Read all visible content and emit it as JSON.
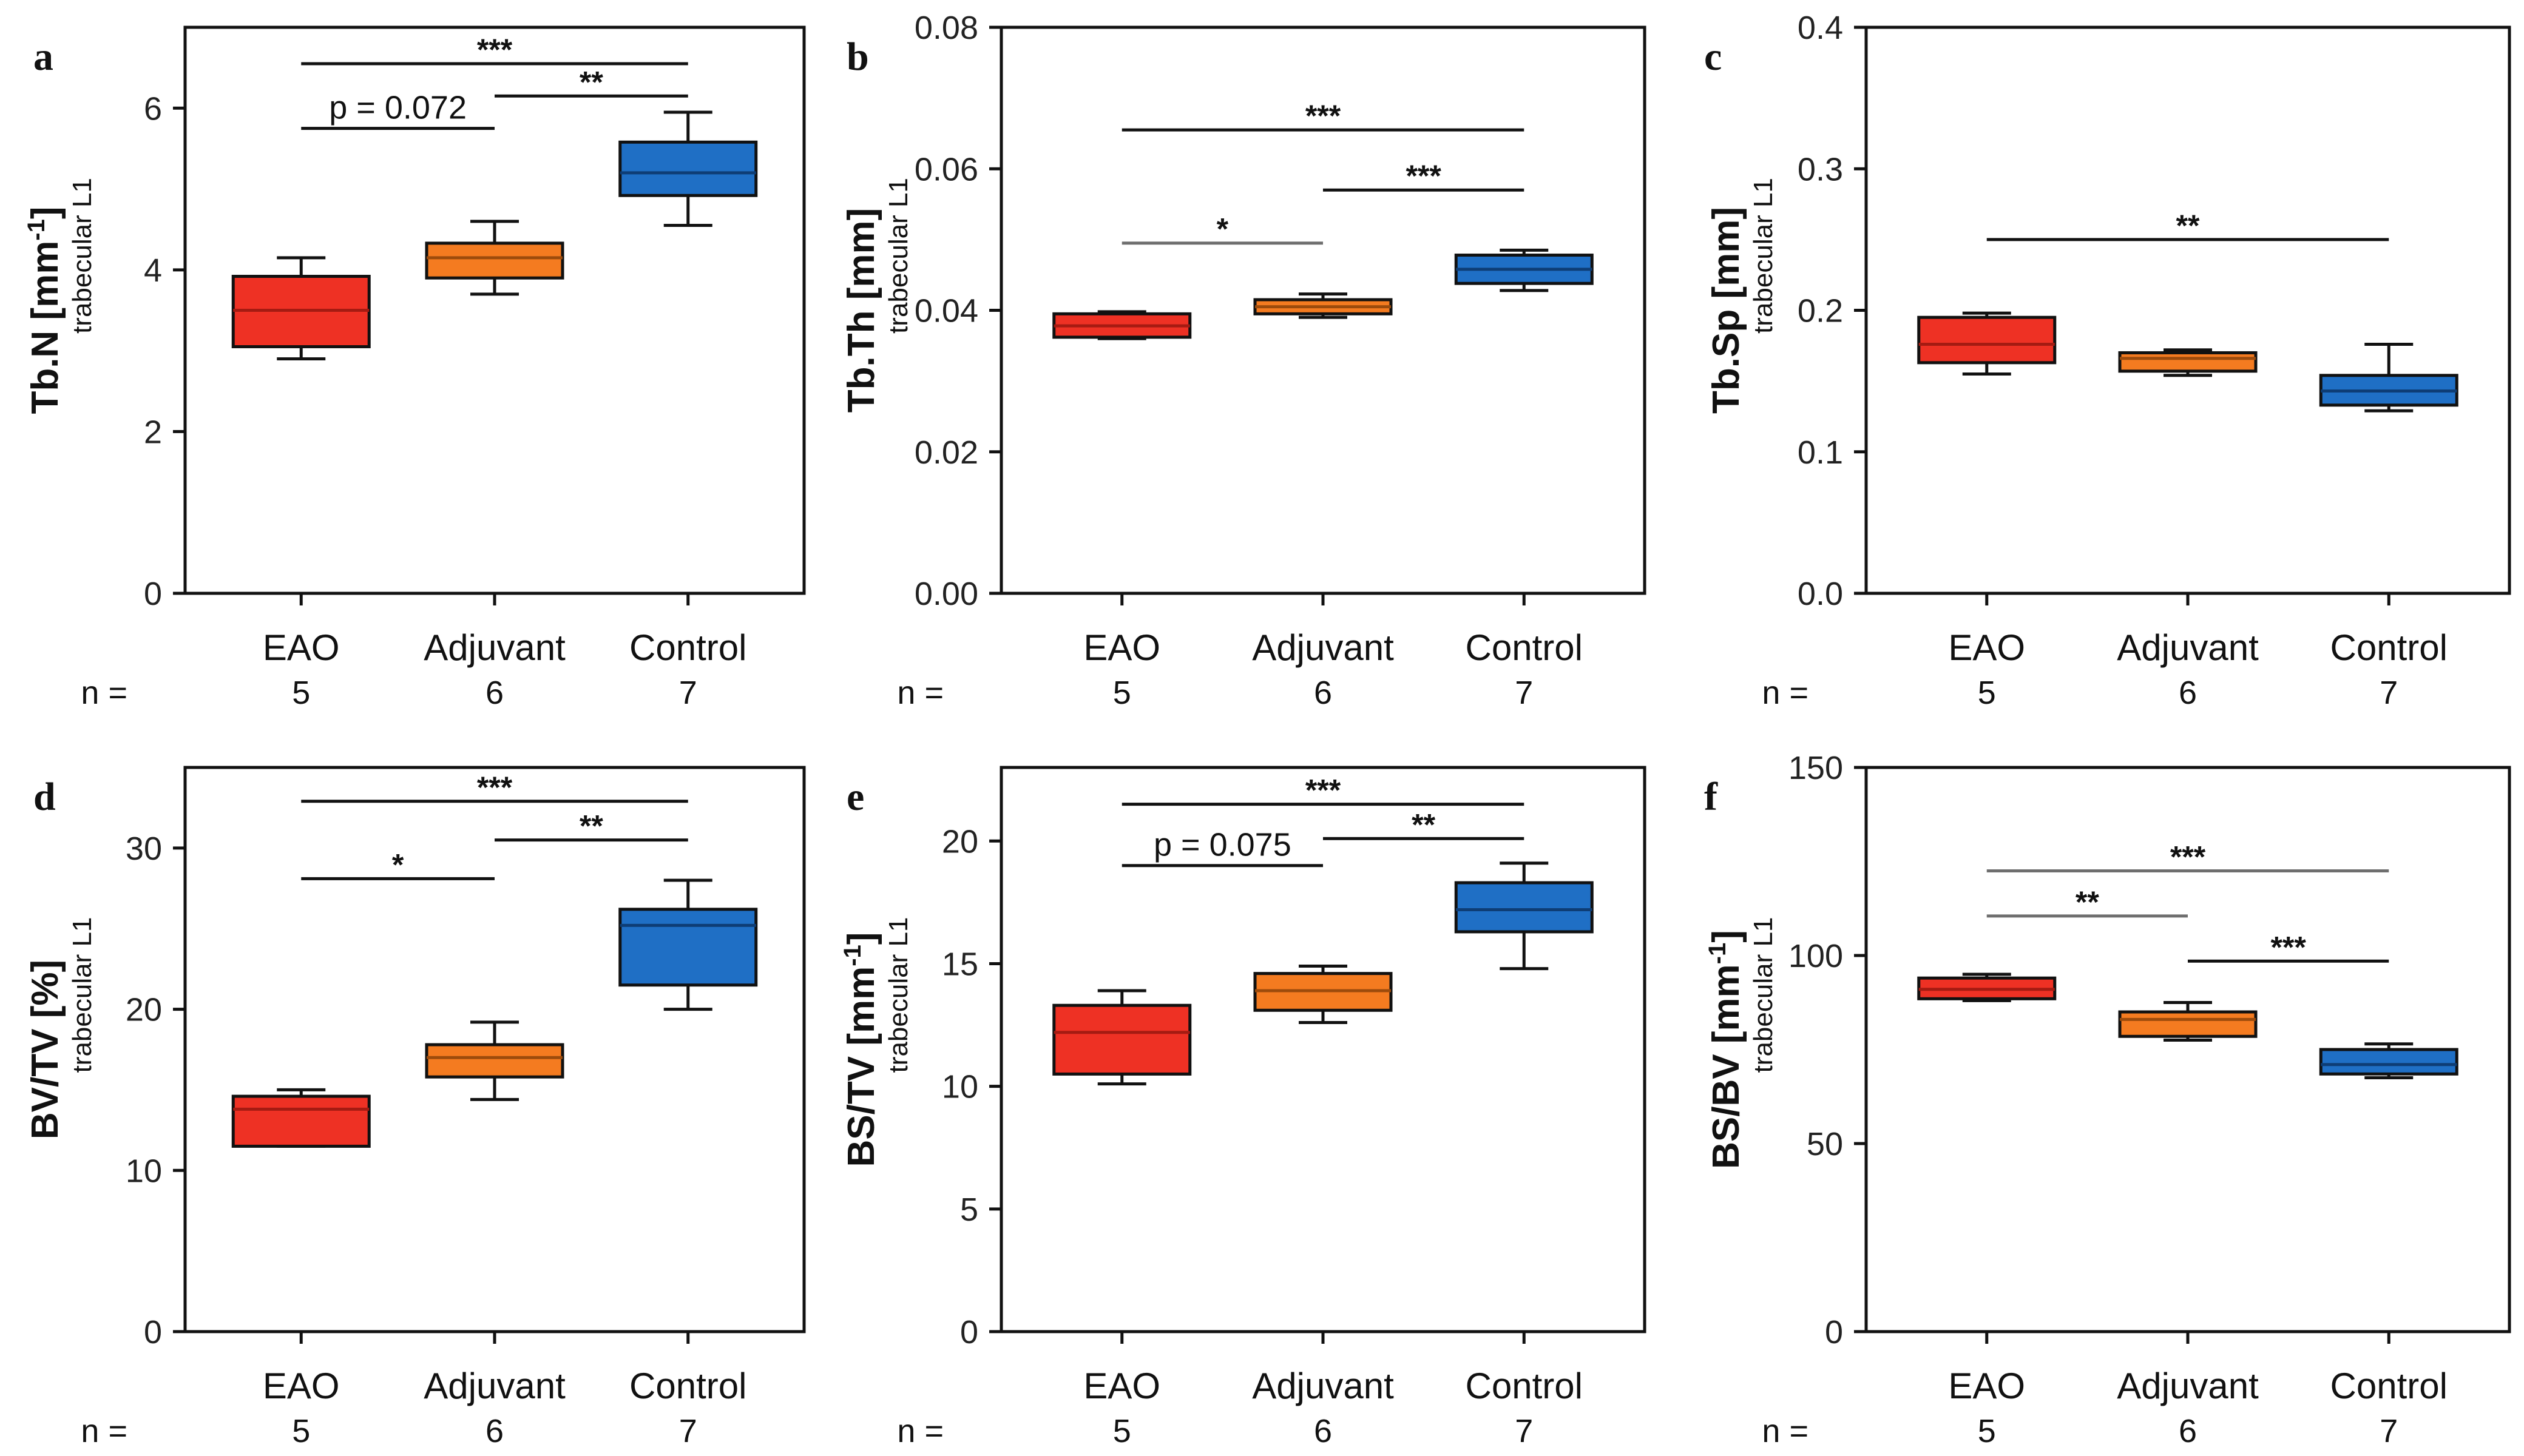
{
  "figure": {
    "n_prefix": "n =",
    "y_sublabel": "trabecular L1",
    "group_colors": [
      "#ee3124",
      "#f47b20",
      "#1f6fc5"
    ],
    "group_colors_dark": [
      "#a51b12",
      "#9c4b0c",
      "#0e3d75"
    ]
  },
  "chart_data": [
    {
      "panel": "a",
      "type": "box",
      "ylabel": "Tb.N [mm",
      "ylabel_sup": "-1",
      "ylabel_tail": "]",
      "categories": [
        "EAO",
        "Adjuvant",
        "Control"
      ],
      "n": [
        "5",
        "6",
        "7"
      ],
      "ylim": [
        0,
        7
      ],
      "ticks": [
        0,
        2,
        4,
        6
      ],
      "tick_labels": [
        "0",
        "2",
        "4",
        "6"
      ],
      "boxes": [
        {
          "min": 2.9,
          "q1": 3.05,
          "median": 3.5,
          "q3": 3.92,
          "max": 4.15
        },
        {
          "min": 3.7,
          "q1": 3.9,
          "median": 4.15,
          "q3": 4.33,
          "max": 4.6
        },
        {
          "min": 4.55,
          "q1": 4.92,
          "median": 5.2,
          "q3": 5.58,
          "max": 5.95
        }
      ],
      "comparisons": [
        {
          "from": 0,
          "to": 2,
          "y": 6.55,
          "label": "***",
          "shade": "dark"
        },
        {
          "from": 1,
          "to": 2,
          "y": 6.15,
          "label": "**",
          "shade": "dark"
        },
        {
          "from": 0,
          "to": 1,
          "y": 5.75,
          "label": "p = 0.072",
          "shade": "dark"
        }
      ]
    },
    {
      "panel": "b",
      "type": "box",
      "ylabel": "Tb.Th [mm]",
      "ylabel_sup": "",
      "ylabel_tail": "",
      "categories": [
        "EAO",
        "Adjuvant",
        "Control"
      ],
      "n": [
        "5",
        "6",
        "7"
      ],
      "ylim": [
        0,
        0.08
      ],
      "ticks": [
        0,
        0.02,
        0.04,
        0.06,
        0.08
      ],
      "tick_labels": [
        "0.00",
        "0.02",
        "0.04",
        "0.06",
        "0.08"
      ],
      "boxes": [
        {
          "min": 0.036,
          "q1": 0.0362,
          "median": 0.0378,
          "q3": 0.0395,
          "max": 0.0398
        },
        {
          "min": 0.039,
          "q1": 0.0395,
          "median": 0.0405,
          "q3": 0.0415,
          "max": 0.0423
        },
        {
          "min": 0.0428,
          "q1": 0.0438,
          "median": 0.0458,
          "q3": 0.0478,
          "max": 0.0485
        }
      ],
      "comparisons": [
        {
          "from": 0,
          "to": 2,
          "y": 0.0655,
          "label": "***",
          "shade": "dark"
        },
        {
          "from": 1,
          "to": 2,
          "y": 0.057,
          "label": "***",
          "shade": "dark"
        },
        {
          "from": 0,
          "to": 1,
          "y": 0.0495,
          "label": "*",
          "shade": "gray"
        }
      ]
    },
    {
      "panel": "c",
      "type": "box",
      "ylabel": "Tb.Sp [mm]",
      "ylabel_sup": "",
      "ylabel_tail": "",
      "categories": [
        "EAO",
        "Adjuvant",
        "Control"
      ],
      "n": [
        "5",
        "6",
        "7"
      ],
      "ylim": [
        0,
        0.4
      ],
      "ticks": [
        0,
        0.1,
        0.2,
        0.3,
        0.4
      ],
      "tick_labels": [
        "0.0",
        "0.1",
        "0.2",
        "0.3",
        "0.4"
      ],
      "boxes": [
        {
          "min": 0.155,
          "q1": 0.163,
          "median": 0.176,
          "q3": 0.195,
          "max": 0.198
        },
        {
          "min": 0.154,
          "q1": 0.157,
          "median": 0.166,
          "q3": 0.17,
          "max": 0.172
        },
        {
          "min": 0.129,
          "q1": 0.133,
          "median": 0.143,
          "q3": 0.154,
          "max": 0.176
        }
      ],
      "comparisons": [
        {
          "from": 0,
          "to": 2,
          "y": 0.25,
          "label": "**",
          "shade": "dark"
        }
      ]
    },
    {
      "panel": "d",
      "type": "box",
      "ylabel": "BV/TV [%]",
      "ylabel_sup": "",
      "ylabel_tail": "",
      "categories": [
        "EAO",
        "Adjuvant",
        "Control"
      ],
      "n": [
        "5",
        "6",
        "7"
      ],
      "ylim": [
        0,
        35
      ],
      "ticks": [
        0,
        10,
        20,
        30
      ],
      "tick_labels": [
        "0",
        "10",
        "20",
        "30"
      ],
      "boxes": [
        {
          "min": 11.5,
          "q1": 11.5,
          "median": 13.8,
          "q3": 14.6,
          "max": 15.0
        },
        {
          "min": 14.4,
          "q1": 15.8,
          "median": 17.0,
          "q3": 17.8,
          "max": 19.2
        },
        {
          "min": 20.0,
          "q1": 21.5,
          "median": 25.2,
          "q3": 26.2,
          "max": 28.0
        }
      ],
      "comparisons": [
        {
          "from": 0,
          "to": 2,
          "y": 32.9,
          "label": "***",
          "shade": "dark"
        },
        {
          "from": 1,
          "to": 2,
          "y": 30.5,
          "label": "**",
          "shade": "dark"
        },
        {
          "from": 0,
          "to": 1,
          "y": 28.1,
          "label": "*",
          "shade": "dark"
        }
      ]
    },
    {
      "panel": "e",
      "type": "box",
      "ylabel": "BS/TV [mm",
      "ylabel_sup": "-1",
      "ylabel_tail": "]",
      "categories": [
        "EAO",
        "Adjuvant",
        "Control"
      ],
      "n": [
        "5",
        "6",
        "7"
      ],
      "ylim": [
        0,
        23
      ],
      "ticks": [
        0,
        5,
        10,
        15,
        20
      ],
      "tick_labels": [
        "0",
        "5",
        "10",
        "15",
        "20"
      ],
      "boxes": [
        {
          "min": 10.1,
          "q1": 10.5,
          "median": 12.2,
          "q3": 13.3,
          "max": 13.9
        },
        {
          "min": 12.6,
          "q1": 13.1,
          "median": 13.9,
          "q3": 14.6,
          "max": 14.9
        },
        {
          "min": 14.8,
          "q1": 16.3,
          "median": 17.2,
          "q3": 18.3,
          "max": 19.1
        }
      ],
      "comparisons": [
        {
          "from": 0,
          "to": 2,
          "y": 21.5,
          "label": "***",
          "shade": "dark"
        },
        {
          "from": 1,
          "to": 2,
          "y": 20.1,
          "label": "**",
          "shade": "dark"
        },
        {
          "from": 0,
          "to": 1,
          "y": 19.0,
          "label": "p = 0.075",
          "shade": "dark"
        }
      ]
    },
    {
      "panel": "f",
      "type": "box",
      "ylabel": "BS/BV [mm",
      "ylabel_sup": "-1",
      "ylabel_tail": "]",
      "categories": [
        "EAO",
        "Adjuvant",
        "Control"
      ],
      "n": [
        "5",
        "6",
        "7"
      ],
      "ylim": [
        0,
        150
      ],
      "ticks": [
        0,
        50,
        100,
        150
      ],
      "tick_labels": [
        "0",
        "50",
        "100",
        "150"
      ],
      "boxes": [
        {
          "min": 88.0,
          "q1": 88.5,
          "median": 91.0,
          "q3": 94.0,
          "max": 95.0
        },
        {
          "min": 77.5,
          "q1": 78.5,
          "median": 83.0,
          "q3": 85.0,
          "max": 87.5
        },
        {
          "min": 67.5,
          "q1": 68.5,
          "median": 71.0,
          "q3": 75.0,
          "max": 76.5
        }
      ],
      "comparisons": [
        {
          "from": 0,
          "to": 2,
          "y": 122.5,
          "label": "***",
          "shade": "gray"
        },
        {
          "from": 0,
          "to": 1,
          "y": 110.5,
          "label": "**",
          "shade": "gray"
        },
        {
          "from": 1,
          "to": 2,
          "y": 98.5,
          "label": "***",
          "shade": "dark"
        }
      ]
    }
  ]
}
